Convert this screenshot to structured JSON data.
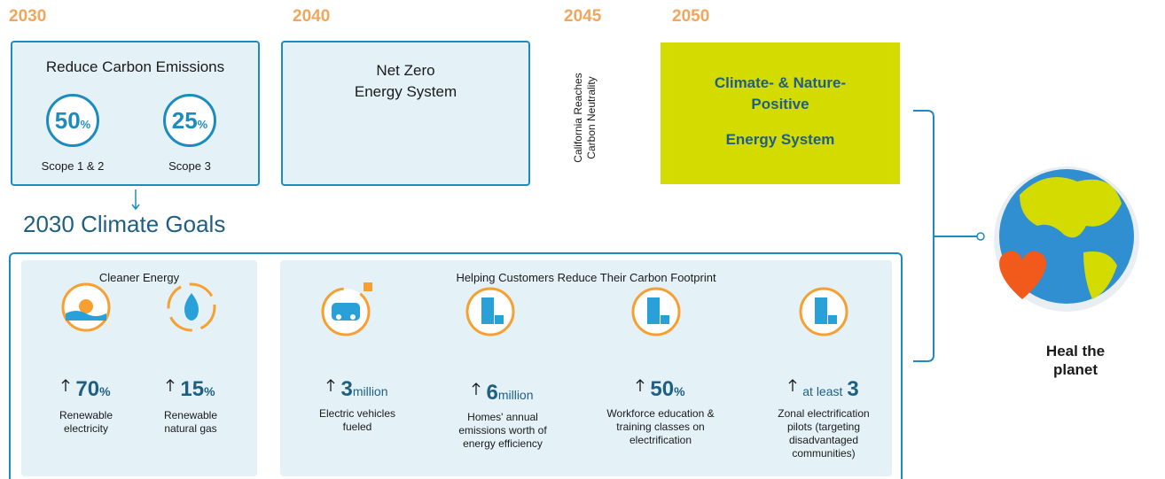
{
  "timeline": {
    "years": [
      "2030",
      "2040",
      "2045",
      "2050"
    ],
    "box_2030": {
      "title": "Reduce Carbon Emissions",
      "targets": [
        {
          "value": "50",
          "unit": "%",
          "label": "Scope 1 & 2"
        },
        {
          "value": "25",
          "unit": "%",
          "label": "Scope 3"
        }
      ]
    },
    "box_2040": {
      "lines": [
        "Net Zero",
        "Energy System"
      ]
    },
    "note_2045": {
      "lines": [
        "California Reaches",
        "Carbon Neutrality"
      ]
    },
    "box_2050": {
      "lines": [
        "Climate- & Nature-",
        "Positive",
        "Energy System"
      ]
    }
  },
  "goals": {
    "heading": "2030 Climate Goals",
    "cleaner_energy": {
      "title": "Cleaner Energy",
      "items": [
        {
          "value": "70",
          "unit": "%",
          "label": [
            "Renewable",
            "electricity"
          ]
        },
        {
          "value": "15",
          "unit": "%",
          "label": [
            "Renewable",
            "natural gas"
          ]
        }
      ]
    },
    "customers": {
      "title": "Helping Customers Reduce Their Carbon Footprint",
      "items": [
        {
          "value": "3",
          "unit": "million",
          "label": [
            "Electric vehicles",
            "fueled"
          ]
        },
        {
          "value": "6",
          "unit": "million",
          "label": [
            "Homes' annual",
            "emissions worth of",
            "energy efficiency"
          ]
        },
        {
          "value": "50",
          "unit": "%",
          "label": [
            "Workforce education &",
            "training classes on",
            "electrification"
          ]
        },
        {
          "prefix": "at least",
          "value": "3",
          "label": [
            "Zonal electrification",
            "pilots (targeting",
            "disadvantaged",
            "communities)"
          ]
        }
      ]
    }
  },
  "outcome": {
    "lines": [
      "Heal the",
      "planet"
    ]
  }
}
